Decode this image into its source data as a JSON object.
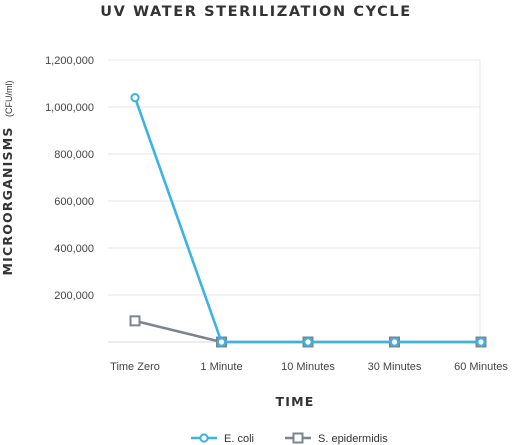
{
  "colors": {
    "ecoli": "#3bb3e3",
    "sepidermidis": "#7a8590",
    "text": "#333333"
  },
  "chart_data": {
    "type": "line",
    "title": "UV WATER STERILIZATION CYCLE",
    "xlabel": "TIME",
    "ylabel": "MICROORGANISMS",
    "ylabel_unit": "(CFU/ml)",
    "categories": [
      "Time Zero",
      "1 Minute",
      "10 Minutes",
      "30 Minutes",
      "60 Minutes"
    ],
    "yticks": [
      {
        "value": 200000,
        "label": "200,000"
      },
      {
        "value": 400000,
        "label": "400,000"
      },
      {
        "value": 600000,
        "label": "600,000"
      },
      {
        "value": 800000,
        "label": "800,000"
      },
      {
        "value": 1000000,
        "label": "1,000,000"
      },
      {
        "value": 1200000,
        "label": "1,200,000"
      }
    ],
    "ylim": [
      0,
      1200000
    ],
    "grid": true,
    "legend_position": "bottom",
    "series": [
      {
        "name": "E. coli",
        "color_key": "ecoli",
        "marker": "circle",
        "values": [
          1040000,
          0,
          0,
          0,
          0
        ]
      },
      {
        "name": "S. epidermidis",
        "color_key": "sepidermidis",
        "marker": "square",
        "values": [
          90000,
          0,
          0,
          0,
          0
        ]
      }
    ]
  }
}
